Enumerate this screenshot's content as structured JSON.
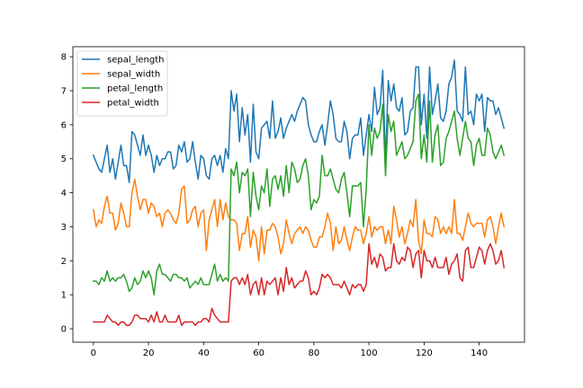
{
  "chart_data": {
    "type": "line",
    "title": "",
    "xlabel": "",
    "ylabel": "",
    "xlim": [
      -7.45,
      156.45
    ],
    "ylim": [
      -0.395,
      8.295
    ],
    "xticks": [
      0,
      20,
      40,
      60,
      80,
      100,
      120,
      140
    ],
    "yticks": [
      0,
      1,
      2,
      3,
      4,
      5,
      6,
      7,
      8
    ],
    "grid": false,
    "legend_position": "top-left",
    "series": [
      {
        "name": "sepal_length",
        "color": "#1f77b4",
        "values": [
          5.1,
          4.9,
          4.7,
          4.6,
          5.0,
          5.4,
          4.6,
          5.0,
          4.4,
          4.9,
          5.4,
          4.8,
          4.8,
          4.3,
          5.8,
          5.7,
          5.4,
          5.1,
          5.7,
          5.1,
          5.4,
          5.1,
          4.6,
          5.1,
          4.8,
          5.0,
          5.0,
          5.2,
          5.2,
          4.7,
          4.8,
          5.4,
          5.2,
          5.5,
          4.9,
          5.0,
          5.5,
          4.9,
          4.4,
          5.1,
          5.0,
          4.5,
          4.4,
          5.0,
          5.1,
          4.8,
          5.1,
          4.6,
          5.3,
          5.0,
          7.0,
          6.4,
          6.9,
          5.5,
          6.5,
          5.7,
          6.3,
          4.9,
          6.6,
          5.2,
          5.0,
          5.9,
          6.0,
          6.1,
          5.6,
          6.7,
          5.6,
          5.8,
          6.2,
          5.6,
          5.9,
          6.1,
          6.3,
          6.1,
          6.4,
          6.6,
          6.8,
          6.7,
          6.0,
          5.7,
          5.5,
          5.5,
          5.8,
          6.0,
          5.4,
          6.0,
          6.7,
          6.3,
          5.6,
          5.5,
          5.5,
          6.1,
          5.8,
          5.0,
          5.6,
          5.7,
          5.7,
          6.2,
          5.1,
          5.7,
          6.3,
          5.8,
          7.1,
          6.3,
          6.5,
          7.6,
          4.9,
          7.3,
          6.7,
          7.2,
          6.5,
          6.4,
          6.8,
          5.7,
          5.8,
          6.4,
          6.5,
          7.7,
          7.7,
          6.0,
          6.9,
          5.6,
          7.7,
          6.3,
          6.7,
          7.2,
          6.2,
          6.1,
          6.4,
          7.2,
          7.4,
          7.9,
          6.4,
          6.3,
          6.1,
          7.7,
          6.3,
          6.4,
          6.0,
          6.9,
          6.7,
          6.9,
          5.8,
          6.8,
          6.7,
          6.7,
          6.3,
          6.5,
          6.2,
          5.9
        ]
      },
      {
        "name": "sepal_width",
        "color": "#ff7f0e",
        "values": [
          3.5,
          3.0,
          3.2,
          3.1,
          3.6,
          3.9,
          3.4,
          3.4,
          2.9,
          3.1,
          3.7,
          3.4,
          3.0,
          3.0,
          4.0,
          4.4,
          3.9,
          3.5,
          3.8,
          3.8,
          3.4,
          3.7,
          3.6,
          3.3,
          3.4,
          3.0,
          3.4,
          3.5,
          3.4,
          3.2,
          3.1,
          3.4,
          4.1,
          4.2,
          3.1,
          3.2,
          3.5,
          3.6,
          3.0,
          3.4,
          3.5,
          2.3,
          3.2,
          3.5,
          3.8,
          3.0,
          3.8,
          3.2,
          3.7,
          3.3,
          3.2,
          3.2,
          3.1,
          2.3,
          2.8,
          2.8,
          3.3,
          2.4,
          2.9,
          2.7,
          2.0,
          3.0,
          2.2,
          2.9,
          2.9,
          3.1,
          3.0,
          2.7,
          2.2,
          2.5,
          3.2,
          2.8,
          2.5,
          2.8,
          2.9,
          3.0,
          2.8,
          3.0,
          2.9,
          2.6,
          2.4,
          2.4,
          2.7,
          2.7,
          3.0,
          3.4,
          3.1,
          2.3,
          3.0,
          2.5,
          2.6,
          3.0,
          2.6,
          2.3,
          2.7,
          3.0,
          2.9,
          2.9,
          2.5,
          2.8,
          3.3,
          2.7,
          3.0,
          2.9,
          3.0,
          3.0,
          2.5,
          2.9,
          2.5,
          3.6,
          3.2,
          2.7,
          3.0,
          2.5,
          2.8,
          3.2,
          3.0,
          3.8,
          2.6,
          2.2,
          3.2,
          2.8,
          2.8,
          2.7,
          3.3,
          3.2,
          2.8,
          3.0,
          2.8,
          3.0,
          2.8,
          3.8,
          2.8,
          2.8,
          2.6,
          3.0,
          3.4,
          3.1,
          3.0,
          3.1,
          3.1,
          3.1,
          2.7,
          3.2,
          3.3,
          3.0,
          2.5,
          3.0,
          3.4,
          3.0
        ]
      },
      {
        "name": "petal_length",
        "color": "#2ca02c",
        "values": [
          1.4,
          1.4,
          1.3,
          1.5,
          1.4,
          1.7,
          1.4,
          1.5,
          1.4,
          1.5,
          1.5,
          1.6,
          1.4,
          1.1,
          1.2,
          1.5,
          1.3,
          1.4,
          1.7,
          1.5,
          1.7,
          1.5,
          1.0,
          1.7,
          1.9,
          1.6,
          1.6,
          1.5,
          1.4,
          1.6,
          1.6,
          1.5,
          1.5,
          1.4,
          1.5,
          1.2,
          1.3,
          1.4,
          1.3,
          1.5,
          1.3,
          1.3,
          1.3,
          1.6,
          1.9,
          1.4,
          1.6,
          1.4,
          1.5,
          1.4,
          4.7,
          4.5,
          4.9,
          4.0,
          4.6,
          4.5,
          4.7,
          3.3,
          4.6,
          3.9,
          3.5,
          4.2,
          4.0,
          4.7,
          3.6,
          4.4,
          4.5,
          4.1,
          4.5,
          3.9,
          4.8,
          4.0,
          4.9,
          4.7,
          4.3,
          4.4,
          4.8,
          5.0,
          4.5,
          3.5,
          3.8,
          3.7,
          3.9,
          5.1,
          4.5,
          4.5,
          4.7,
          4.4,
          4.1,
          4.0,
          4.4,
          4.6,
          4.0,
          3.3,
          4.2,
          4.2,
          4.2,
          4.3,
          3.0,
          4.1,
          6.0,
          5.1,
          5.9,
          5.6,
          5.8,
          6.6,
          4.5,
          6.3,
          5.8,
          6.1,
          5.1,
          5.3,
          5.5,
          5.0,
          5.1,
          5.3,
          5.5,
          6.7,
          6.9,
          5.0,
          5.7,
          4.9,
          6.7,
          4.9,
          5.7,
          6.0,
          4.8,
          4.9,
          5.6,
          5.8,
          6.1,
          6.4,
          5.6,
          5.1,
          5.6,
          6.1,
          5.6,
          5.5,
          4.8,
          5.4,
          5.6,
          5.1,
          5.1,
          5.9,
          5.7,
          5.2,
          5.0,
          5.2,
          5.4,
          5.1
        ]
      },
      {
        "name": "petal_width",
        "color": "#d62728",
        "values": [
          0.2,
          0.2,
          0.2,
          0.2,
          0.2,
          0.4,
          0.3,
          0.2,
          0.2,
          0.1,
          0.2,
          0.2,
          0.1,
          0.1,
          0.2,
          0.4,
          0.4,
          0.3,
          0.3,
          0.3,
          0.2,
          0.4,
          0.2,
          0.5,
          0.2,
          0.2,
          0.4,
          0.2,
          0.2,
          0.2,
          0.2,
          0.4,
          0.1,
          0.2,
          0.2,
          0.2,
          0.2,
          0.1,
          0.2,
          0.2,
          0.3,
          0.3,
          0.2,
          0.6,
          0.4,
          0.3,
          0.2,
          0.2,
          0.2,
          0.2,
          1.4,
          1.5,
          1.5,
          1.3,
          1.5,
          1.3,
          1.6,
          1.0,
          1.3,
          1.4,
          1.0,
          1.5,
          1.0,
          1.4,
          1.3,
          1.4,
          1.5,
          1.0,
          1.5,
          1.1,
          1.8,
          1.3,
          1.5,
          1.2,
          1.3,
          1.4,
          1.4,
          1.7,
          1.5,
          1.0,
          1.1,
          1.0,
          1.2,
          1.6,
          1.5,
          1.6,
          1.5,
          1.3,
          1.3,
          1.3,
          1.2,
          1.4,
          1.2,
          1.0,
          1.3,
          1.2,
          1.3,
          1.3,
          1.1,
          1.3,
          2.5,
          1.9,
          2.1,
          1.8,
          2.2,
          2.1,
          1.7,
          1.8,
          1.8,
          2.5,
          2.0,
          1.9,
          2.1,
          2.0,
          2.4,
          2.3,
          1.8,
          2.2,
          2.3,
          1.5,
          2.3,
          2.0,
          2.0,
          1.8,
          2.1,
          1.8,
          1.8,
          1.8,
          2.1,
          1.6,
          1.9,
          2.0,
          2.2,
          1.5,
          1.4,
          2.3,
          2.4,
          1.8,
          1.8,
          2.1,
          2.4,
          2.3,
          1.9,
          2.3,
          2.5,
          2.3,
          1.9,
          2.0,
          2.3,
          1.8
        ]
      }
    ]
  }
}
